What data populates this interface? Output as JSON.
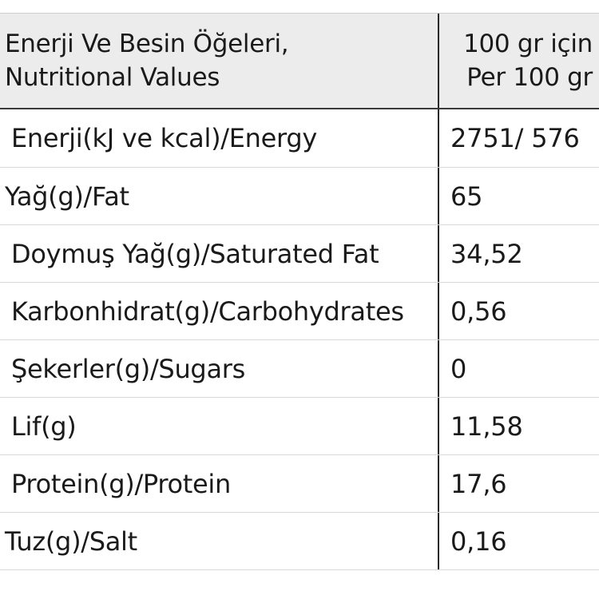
{
  "table": {
    "header": {
      "left_line1": "Enerji Ve Besin Öğeleri,",
      "left_line2": "Nutritional Values",
      "right_line1": "100 gr için",
      "right_line2": "Per 100 gr"
    },
    "rows": [
      {
        "label": "Enerji(kJ ve kcal)/Energy",
        "value": "2751/ 576"
      },
      {
        "label": "Yağ(g)/Fat",
        "value": "65"
      },
      {
        "label": "Doymuş Yağ(g)/Saturated Fat",
        "value": "34,52"
      },
      {
        "label": "Karbonhidrat(g)/Carbohydrates",
        "value": "0,56"
      },
      {
        "label": "Şekerler(g)/Sugars",
        "value": "0"
      },
      {
        "label": "Lif(g)",
        "value": "11,58"
      },
      {
        "label": "Protein(g)/Protein",
        "value": "17,6"
      },
      {
        "label": "Tuz(g)/Salt",
        "value": "0,16"
      }
    ]
  }
}
